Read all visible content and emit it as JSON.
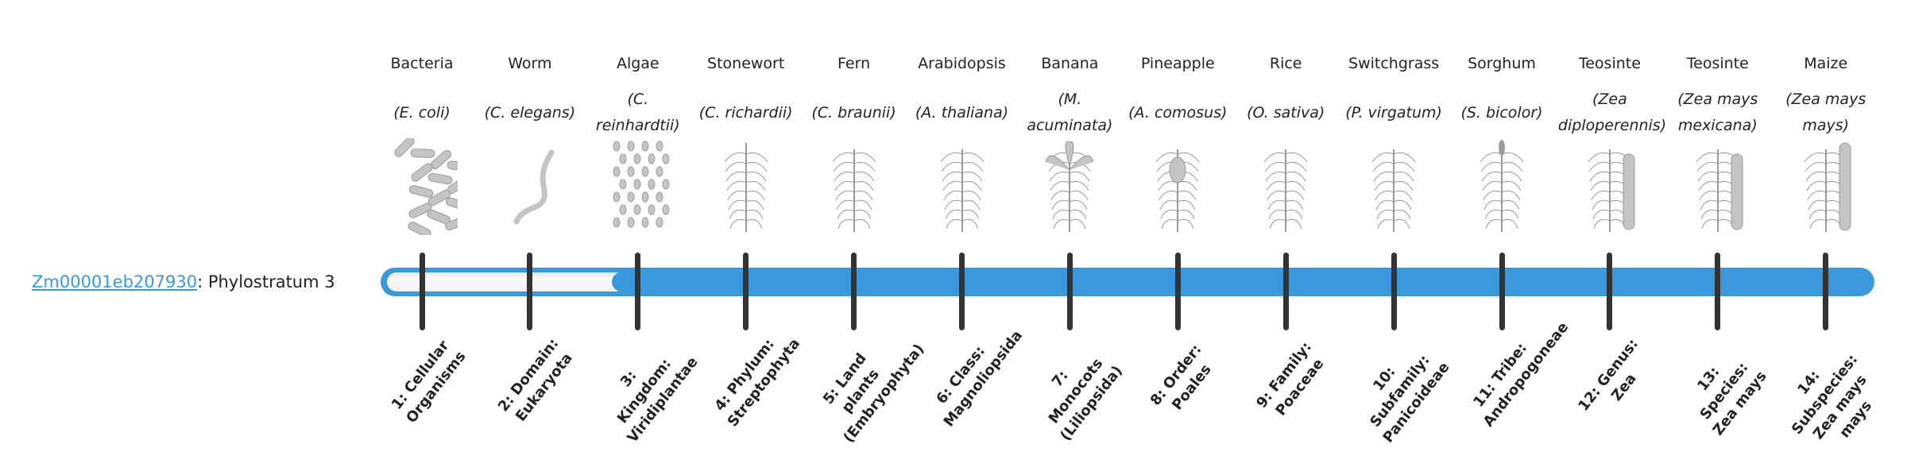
{
  "gene": {
    "id": "Zm00001eb207930",
    "suffix": ": Phylostratum 3",
    "phylostratum": 3
  },
  "colors": {
    "bar": "#3a98db",
    "tick": "#333333",
    "link": "#3a98db"
  },
  "strata": [
    {
      "organism": "Bacteria",
      "species": "(E. coli)",
      "rank": "1: Cellular Organisms",
      "icon": "bacteria-icon"
    },
    {
      "organism": "Worm",
      "species": "(C. elegans)",
      "rank": "2: Domain: Eukaryota",
      "icon": "worm-icon"
    },
    {
      "organism": "Algae",
      "species": "(C. reinhardtii)",
      "rank": "3: Kingdom: Viridiplantae",
      "icon": "algae-icon"
    },
    {
      "organism": "Stonewort",
      "species": "(C. richardii)",
      "rank": "4: Phylum: Streptophyta",
      "icon": "stonewort-icon"
    },
    {
      "organism": "Fern",
      "species": "(C. braunii)",
      "rank": "5: Land plants (Embryophyta)",
      "icon": "fern-icon"
    },
    {
      "organism": "Arabidopsis",
      "species": "(A. thaliana)",
      "rank": "6: Class: Magnoliopsida",
      "icon": "arabidopsis-icon"
    },
    {
      "organism": "Banana",
      "species": "(M. acuminata)",
      "rank": "7: Monocots (Liliopsida)",
      "icon": "banana-icon"
    },
    {
      "organism": "Pineapple",
      "species": "(A. comosus)",
      "rank": "8: Order: Poales",
      "icon": "pineapple-icon"
    },
    {
      "organism": "Rice",
      "species": "(O. sativa)",
      "rank": "9: Family: Poaceae",
      "icon": "rice-icon"
    },
    {
      "organism": "Switchgrass",
      "species": "(P. virgatum)",
      "rank": "10: Subfamily: Panicoideae",
      "icon": "switchgrass-icon"
    },
    {
      "organism": "Sorghum",
      "species": "(S. bicolor)",
      "rank": "11: Tribe: Andropogoneae",
      "icon": "sorghum-icon"
    },
    {
      "organism": "Teosinte",
      "species": "(Zea diploperennis)",
      "rank": "12: Genus: Zea",
      "icon": "teosinte-icon"
    },
    {
      "organism": "Teosinte",
      "species": "(Zea mays mexicana)",
      "rank": "13: Species: Zea mays",
      "icon": "teosinte-icon"
    },
    {
      "organism": "Maize",
      "species": "(Zea mays mays)",
      "rank": "14: Subspecies: Zea mays mays",
      "icon": "maize-icon"
    }
  ]
}
